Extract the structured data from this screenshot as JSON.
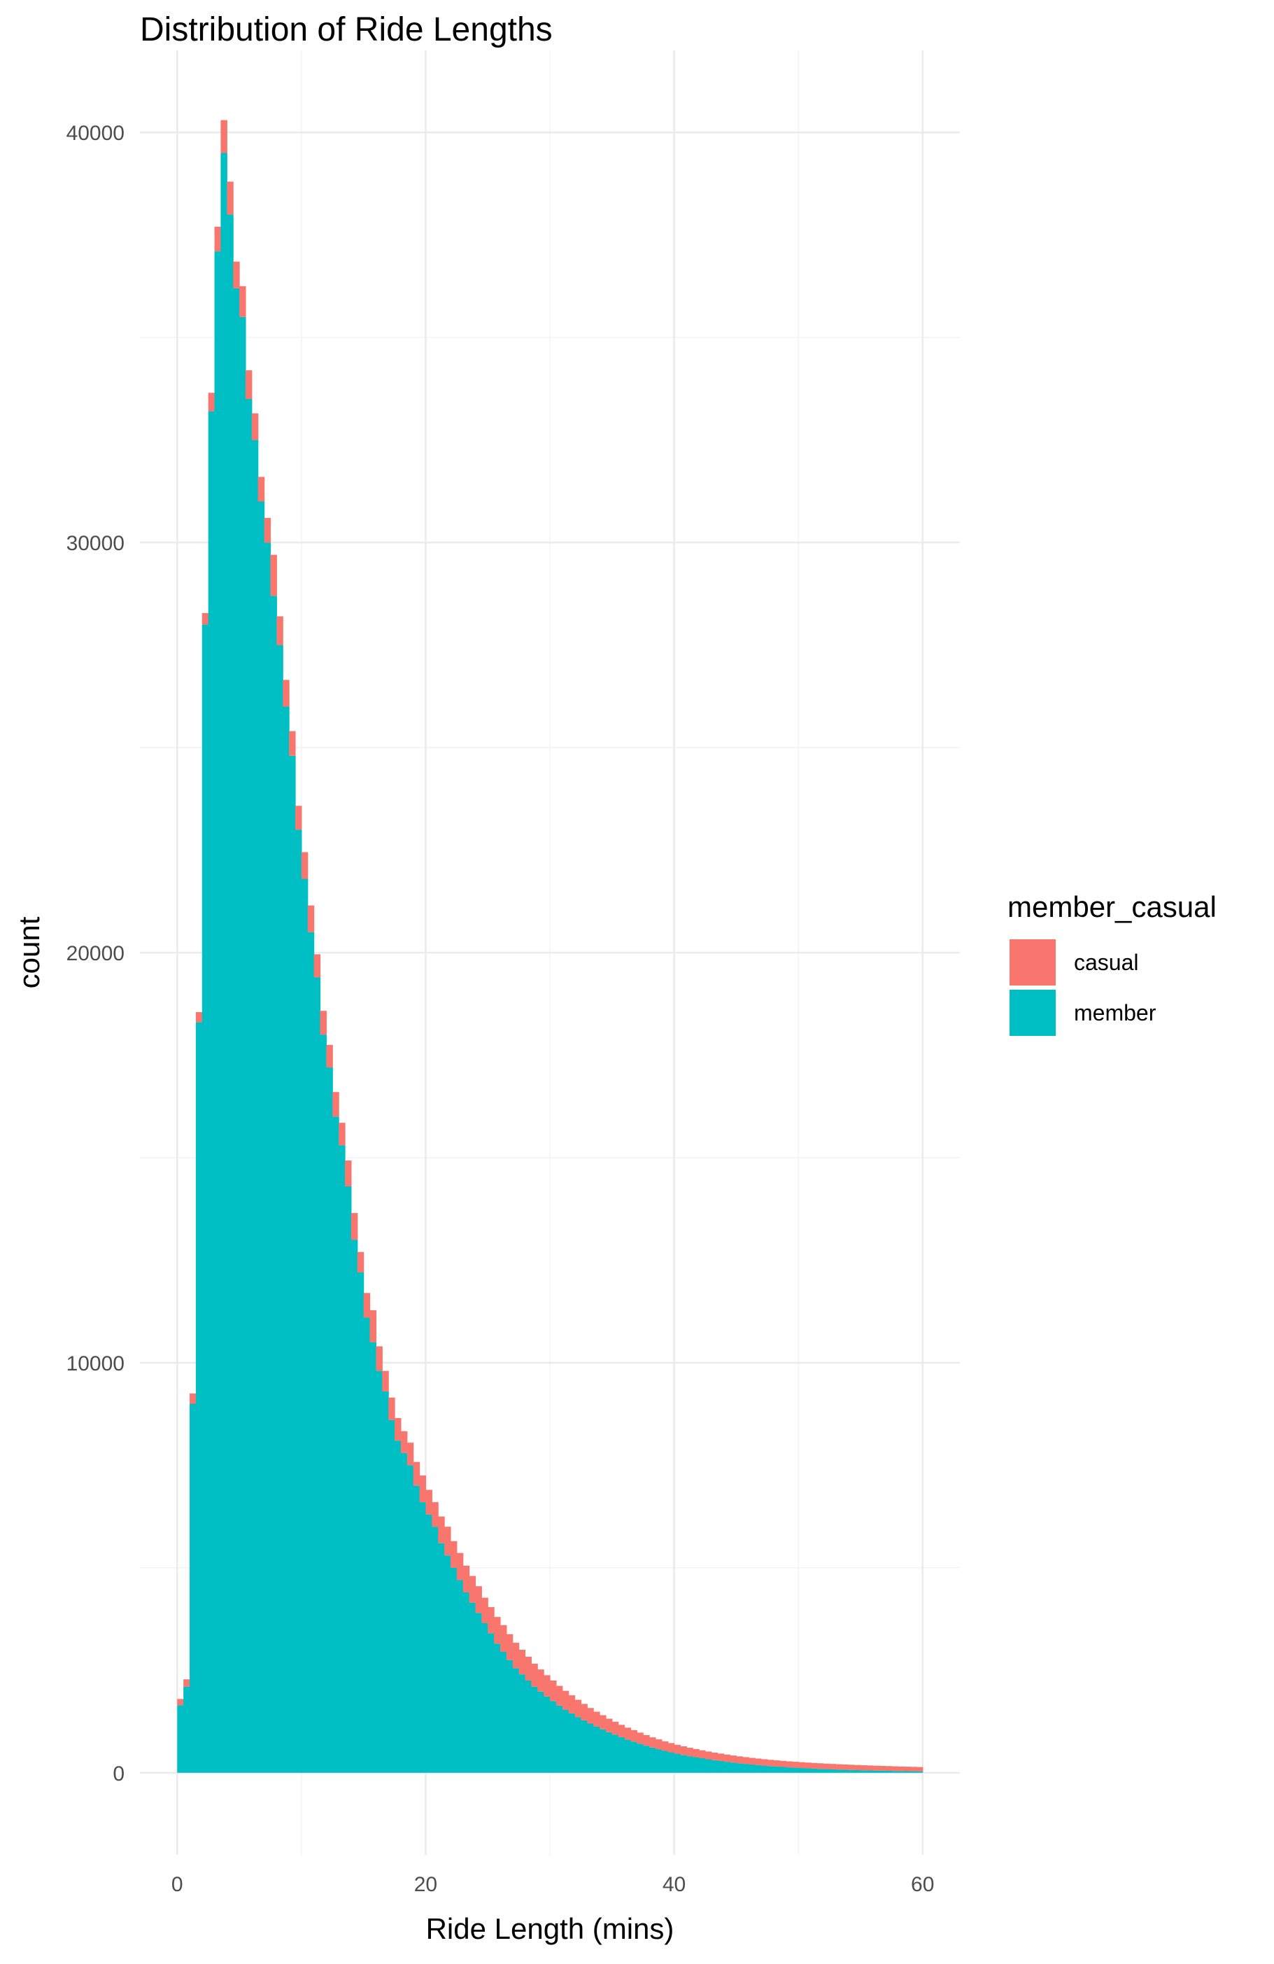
{
  "chart_data": {
    "type": "bar",
    "stacked": true,
    "title": "Distribution of Ride Lengths",
    "xlabel": "Ride Length (mins)",
    "ylabel": "count",
    "xlim": [
      -3,
      63
    ],
    "ylim": [
      -2000,
      42000
    ],
    "x_ticks": [
      0,
      20,
      40,
      60
    ],
    "y_ticks": [
      0,
      10000,
      20000,
      30000,
      40000
    ],
    "grid": true,
    "legend": {
      "title": "member_casual",
      "position": "right"
    },
    "colors": {
      "casual": "#f8766d",
      "member": "#00bfc4"
    },
    "bin_width": 0.5,
    "bin_starts": [
      0,
      0.5,
      1,
      1.5,
      2,
      2.5,
      3,
      3.5,
      4,
      4.5,
      5,
      5.5,
      6,
      6.5,
      7,
      7.5,
      8,
      8.5,
      9,
      9.5,
      10,
      10.5,
      11,
      11.5,
      12,
      12.5,
      13,
      13.5,
      14,
      14.5,
      15,
      15.5,
      16,
      16.5,
      17,
      17.5,
      18,
      18.5,
      19,
      19.5,
      20,
      20.5,
      21,
      21.5,
      22,
      22.5,
      23,
      23.5,
      24,
      24.5,
      25,
      25.5,
      26,
      26.5,
      27,
      27.5,
      28,
      28.5,
      29,
      29.5,
      30,
      30.5,
      31,
      31.5,
      32,
      32.5,
      33,
      33.5,
      34,
      34.5,
      35,
      35.5,
      36,
      36.5,
      37,
      37.5,
      38,
      38.5,
      39,
      39.5,
      40,
      40.5,
      41,
      41.5,
      42,
      42.5,
      43,
      43.5,
      44,
      44.5,
      45,
      45.5,
      46,
      46.5,
      47,
      47.5,
      48,
      48.5,
      49,
      49.5,
      50,
      50.5,
      51,
      51.5,
      52,
      52.5,
      53,
      53.5,
      54,
      54.5,
      55,
      55.5,
      56,
      56.5,
      57,
      57.5,
      58,
      58.5,
      59,
      59.5
    ],
    "series": [
      {
        "name": "member",
        "values": [
          1650,
          2100,
          9000,
          18300,
          28000,
          33200,
          37100,
          39500,
          38000,
          36200,
          35500,
          33500,
          32500,
          31000,
          30000,
          28700,
          27500,
          26000,
          24800,
          23000,
          21800,
          20500,
          19400,
          18000,
          17200,
          16000,
          15300,
          14300,
          13000,
          12200,
          11100,
          10500,
          9800,
          9300,
          8600,
          8100,
          7800,
          7500,
          7000,
          6600,
          6300,
          6000,
          5600,
          5300,
          5000,
          4700,
          4400,
          4150,
          3900,
          3650,
          3400,
          3150,
          2950,
          2750,
          2550,
          2400,
          2250,
          2100,
          1980,
          1860,
          1750,
          1640,
          1540,
          1450,
          1360,
          1280,
          1200,
          1130,
          1060,
          990,
          930,
          870,
          810,
          760,
          710,
          660,
          615,
          575,
          535,
          500,
          465,
          435,
          405,
          380,
          355,
          330,
          308,
          288,
          268,
          250,
          233,
          217,
          202,
          188,
          175,
          163,
          152,
          142,
          132,
          124,
          116,
          108,
          101,
          95,
          89,
          83,
          78,
          73,
          69,
          65,
          61,
          57,
          54,
          51,
          48,
          45,
          42,
          40,
          38,
          36
        ]
      },
      {
        "name": "casual",
        "values": [
          150,
          180,
          250,
          250,
          280,
          450,
          600,
          800,
          800,
          650,
          750,
          700,
          650,
          600,
          600,
          1000,
          700,
          650,
          600,
          580,
          650,
          650,
          560,
          580,
          550,
          600,
          550,
          630,
          650,
          500,
          600,
          780,
          600,
          500,
          550,
          550,
          530,
          550,
          580,
          650,
          600,
          600,
          650,
          700,
          650,
          660,
          650,
          650,
          650,
          620,
          640,
          650,
          650,
          630,
          620,
          600,
          580,
          560,
          540,
          520,
          500,
          480,
          460,
          440,
          420,
          400,
          380,
          360,
          345,
          330,
          315,
          300,
          290,
          280,
          270,
          260,
          250,
          240,
          232,
          225,
          218,
          211,
          205,
          199,
          194,
          189,
          184,
          180,
          176,
          172,
          168,
          165,
          162,
          159,
          156,
          153,
          151,
          149,
          147,
          145,
          143,
          141,
          139,
          137,
          135,
          133,
          131,
          129,
          127,
          125,
          123,
          121,
          119,
          117,
          115,
          113,
          111,
          109,
          107,
          105
        ]
      }
    ]
  }
}
